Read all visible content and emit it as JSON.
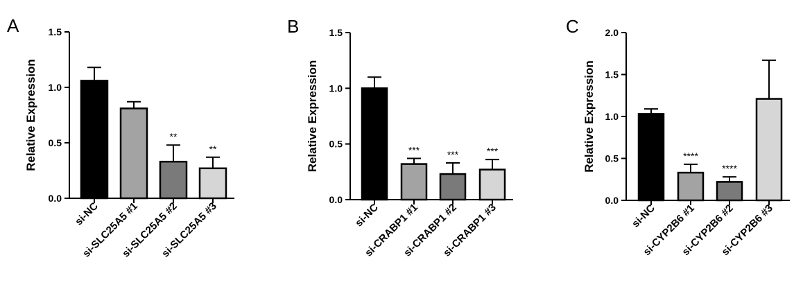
{
  "chart_data": [
    {
      "type": "bar",
      "panel": "A",
      "ylabel": "Relative Expression",
      "ylim": [
        0,
        1.5
      ],
      "yticks": [
        "0.0",
        "0.5",
        "1.0",
        "1.5"
      ],
      "categories": [
        "si-NC",
        "si-SLC25A5 #1",
        "si-SLC25A5 #2",
        "si-SLC25A5 #3"
      ],
      "values": [
        1.06,
        0.81,
        0.33,
        0.27
      ],
      "errors": [
        0.12,
        0.06,
        0.15,
        0.1
      ],
      "significance": [
        "",
        "",
        "**",
        "**"
      ],
      "colors": [
        "#000000",
        "#a3a3a3",
        "#7a7a7a",
        "#d6d6d6"
      ]
    },
    {
      "type": "bar",
      "panel": "B",
      "ylabel": "Relative Expression",
      "ylim": [
        0,
        1.5
      ],
      "yticks": [
        "0.0",
        "0.5",
        "1.0",
        "1.5"
      ],
      "categories": [
        "si-NC",
        "si-CRABP1 #1",
        "si-CRABP1 #2",
        "si-CRABP1 #3"
      ],
      "values": [
        1.0,
        0.32,
        0.23,
        0.27
      ],
      "errors": [
        0.1,
        0.05,
        0.1,
        0.09
      ],
      "significance": [
        "",
        "***",
        "***",
        "***"
      ],
      "colors": [
        "#000000",
        "#a3a3a3",
        "#7a7a7a",
        "#d6d6d6"
      ]
    },
    {
      "type": "bar",
      "panel": "C",
      "ylabel": "Relative Expression",
      "ylim": [
        0,
        2.0
      ],
      "yticks": [
        "0.0",
        "0.5",
        "1.0",
        "1.5",
        "2.0"
      ],
      "categories": [
        "si-NC",
        "si-CYP2B6 #1",
        "si-CYP2B6 #2",
        "si-CYP2B6 #3"
      ],
      "values": [
        1.03,
        0.33,
        0.22,
        1.21
      ],
      "errors": [
        0.06,
        0.1,
        0.06,
        0.46
      ],
      "significance": [
        "",
        "****",
        "****",
        ""
      ],
      "colors": [
        "#000000",
        "#a3a3a3",
        "#7a7a7a",
        "#d6d6d6"
      ]
    }
  ]
}
